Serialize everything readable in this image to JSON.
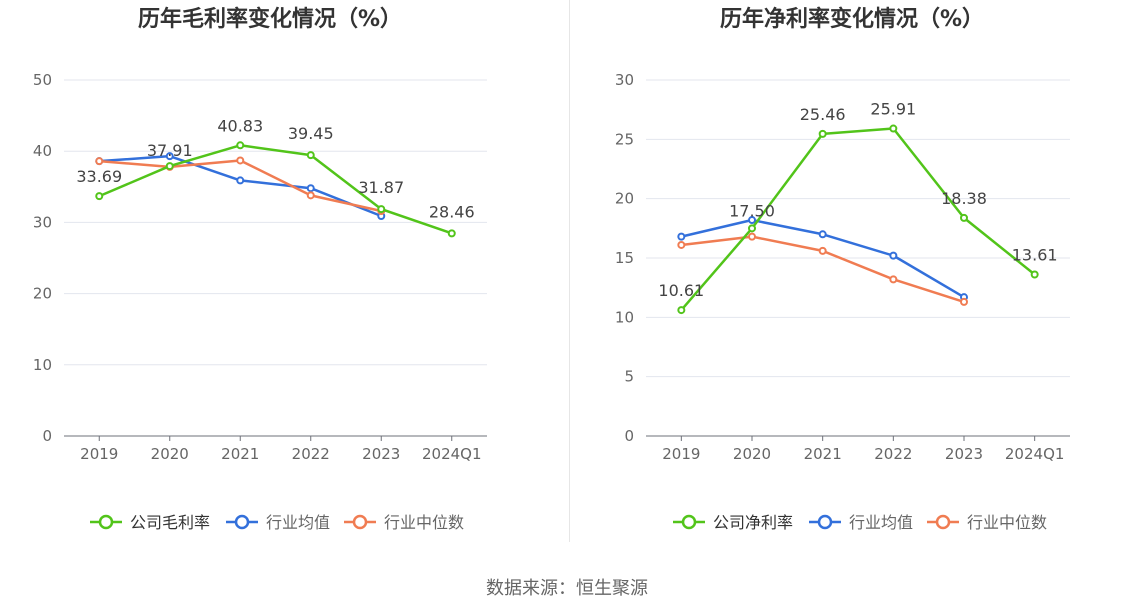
{
  "colors": {
    "company": "#52c41a",
    "average": "#3370db",
    "median": "#f07c52",
    "axis": "#666666",
    "grid": "#e3e6ee",
    "title": "#333333",
    "label": "#444444",
    "legend_text": "#666666"
  },
  "source": "数据来源：恒生聚源",
  "chart_data": [
    {
      "type": "line",
      "title": "历年毛利率变化情况（%）",
      "categories": [
        "2019",
        "2020",
        "2021",
        "2022",
        "2023",
        "2024Q1"
      ],
      "ylim": [
        0,
        50
      ],
      "yticks": [
        0,
        10,
        20,
        30,
        40,
        50
      ],
      "grid": true,
      "legend_position": "bottom",
      "series": [
        {
          "name": "公司毛利率",
          "key": "company",
          "values": [
            33.69,
            37.91,
            40.83,
            39.45,
            31.87,
            28.46
          ],
          "labels": [
            "33.69",
            "37.91",
            "40.83",
            "39.45",
            "31.87",
            "28.46"
          ]
        },
        {
          "name": "行业均值",
          "key": "average",
          "values": [
            38.6,
            39.3,
            35.9,
            34.8,
            30.9,
            null
          ]
        },
        {
          "name": "行业中位数",
          "key": "median",
          "values": [
            38.6,
            37.8,
            38.7,
            33.8,
            31.6,
            null
          ]
        }
      ]
    },
    {
      "type": "line",
      "title": "历年净利率变化情况（%）",
      "categories": [
        "2019",
        "2020",
        "2021",
        "2022",
        "2023",
        "2024Q1"
      ],
      "ylim": [
        0,
        30
      ],
      "yticks": [
        0,
        5,
        10,
        15,
        20,
        25,
        30
      ],
      "grid": true,
      "legend_position": "bottom",
      "series": [
        {
          "name": "公司净利率",
          "key": "company",
          "values": [
            10.61,
            17.5,
            25.46,
            25.91,
            18.38,
            13.61
          ],
          "labels": [
            "10.61",
            "17.50",
            "25.46",
            "25.91",
            "18.38",
            "13.61"
          ]
        },
        {
          "name": "行业均值",
          "key": "average",
          "values": [
            16.8,
            18.2,
            17.0,
            15.2,
            11.7,
            null
          ]
        },
        {
          "name": "行业中位数",
          "key": "median",
          "values": [
            16.1,
            16.8,
            15.6,
            13.2,
            11.3,
            null
          ]
        }
      ]
    }
  ]
}
